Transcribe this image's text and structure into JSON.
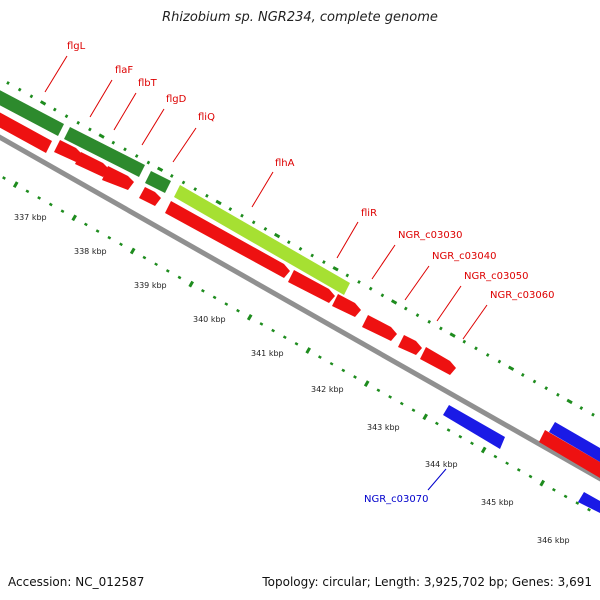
{
  "title": "Rhizobium sp. NGR234, complete genome",
  "footer": {
    "accession": "Accession: NC_012587",
    "topology": "Topology: circular; Length: 3,925,702 bp; Genes: 3,691"
  },
  "scale_labels": [
    "337 kbp",
    "338 kbp",
    "339 kbp",
    "340 kbp",
    "341 kbp",
    "342 kbp",
    "343 kbp",
    "344 kbp",
    "345 kbp",
    "346 kbp"
  ],
  "gene_labels": [
    "flgL",
    "flaF",
    "flbT",
    "flgD",
    "fliQ",
    "flhA",
    "fliR",
    "NGR_c03030",
    "NGR_c03040",
    "NGR_c03050",
    "NGR_c03060",
    "NGR_c03070"
  ],
  "colors": {
    "dark_green": "#2d8a2d",
    "light_green": "#a6e032",
    "red": "#ee1111",
    "blue": "#1a1ae6",
    "backbone": "#909090",
    "tick": "#1e8c1e",
    "forward_label": "#dd0000",
    "reverse_label": "#0000cc"
  }
}
